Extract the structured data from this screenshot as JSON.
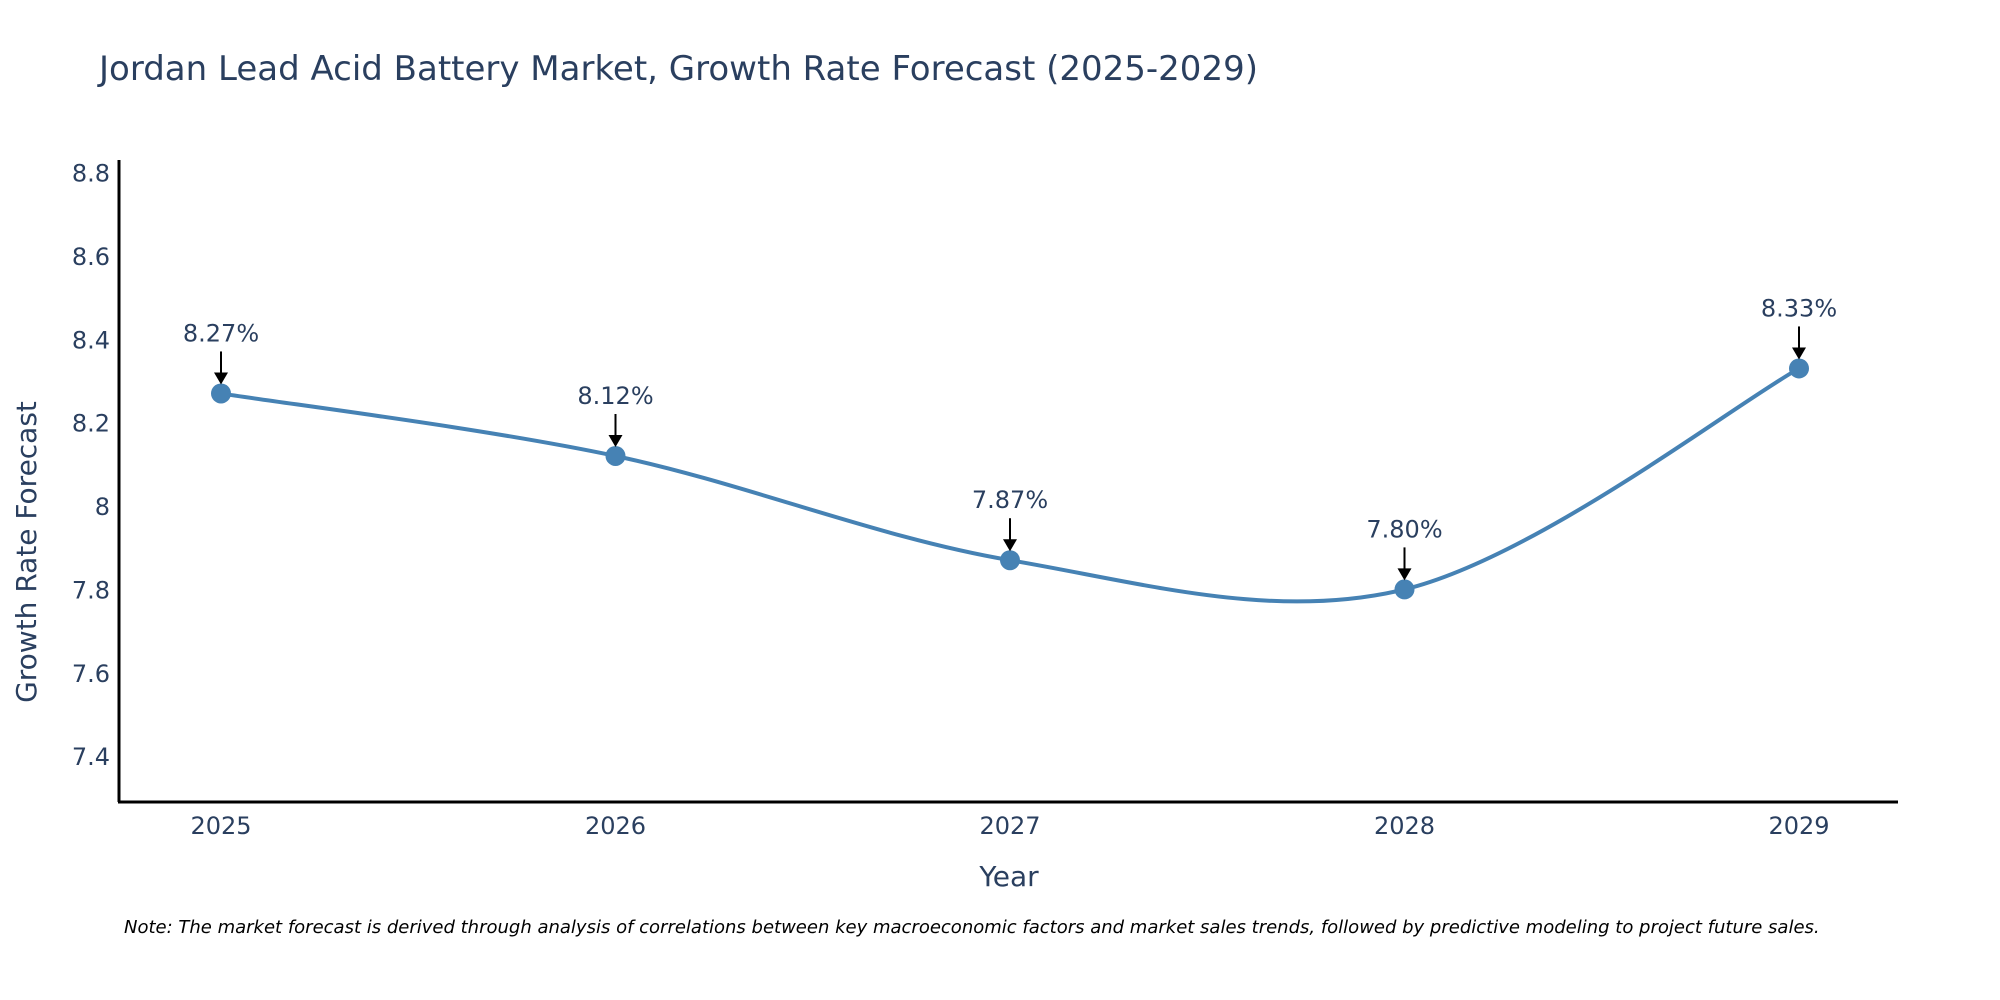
{
  "chart_data": {
    "type": "line",
    "title": "Jordan Lead Acid Battery Market, Growth Rate Forecast (2025-2029)",
    "xlabel": "Year",
    "ylabel": "Growth Rate Forecast",
    "categories": [
      "2025",
      "2026",
      "2027",
      "2028",
      "2029"
    ],
    "series": [
      {
        "name": "Growth Rate Forecast",
        "values": [
          8.27,
          8.12,
          7.87,
          7.8,
          8.33
        ],
        "labels": [
          "8.27%",
          "8.12%",
          "7.87%",
          "7.80%",
          "8.33%"
        ]
      }
    ],
    "ylim": [
      7.29,
      8.83
    ],
    "yticks": [
      7.4,
      7.6,
      7.8,
      8.0,
      8.2,
      8.4,
      8.6,
      8.8
    ],
    "ytick_labels": [
      "7.4",
      "7.6",
      "7.8",
      "8",
      "8.2",
      "8.4",
      "8.6",
      "8.8"
    ],
    "grid": false,
    "line_shape": "spline",
    "line_color": "#4682B4",
    "marker_color": "#4682B4"
  },
  "note": "Note: The market forecast is derived through analysis of correlations between key macroeconomic factors and market sales trends, followed by predictive modeling to project future sales."
}
